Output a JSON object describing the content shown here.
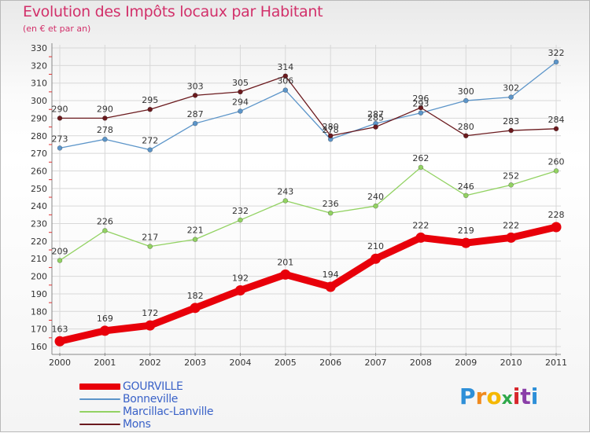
{
  "title": "Evolution des Impôts locaux par Habitant",
  "subtitle": "(en € et par an)",
  "brand": {
    "letters": [
      "P",
      "r",
      "o",
      "x",
      "i",
      "t",
      "i"
    ],
    "colors": [
      "#2e8fd8",
      "#f08a1e",
      "#f5b800",
      "#2ea84a",
      "#d8262c",
      "#8a3ea8",
      "#2e8fd8"
    ]
  },
  "chart_data": {
    "type": "line",
    "title": "Evolution des Impôts locaux par Habitant",
    "subtitle": "(en € et par an)",
    "xlabel": "",
    "ylabel": "",
    "x": [
      "2000",
      "2001",
      "2002",
      "2003",
      "2004",
      "2005",
      "2006",
      "2007",
      "2008",
      "2009",
      "2010",
      "2011"
    ],
    "ylim": [
      160,
      330
    ],
    "yticks": [
      160,
      170,
      180,
      190,
      200,
      210,
      220,
      230,
      240,
      250,
      260,
      270,
      280,
      290,
      300,
      310,
      320,
      330
    ],
    "grid": true,
    "legend_position": "bottom-left",
    "series": [
      {
        "name": "GOURVILLE",
        "color": "#e8000a",
        "values": [
          163,
          169,
          172,
          182,
          192,
          201,
          194,
          210,
          222,
          219,
          222,
          228
        ],
        "bold": true
      },
      {
        "name": "Bonneville",
        "color": "#5c95c9",
        "values": [
          273,
          278,
          272,
          287,
          294,
          306,
          278,
          287,
          293,
          300,
          302,
          322
        ]
      },
      {
        "name": "Marcillac-Lanville",
        "color": "#92d262",
        "values": [
          209,
          226,
          217,
          221,
          232,
          243,
          236,
          240,
          262,
          246,
          252,
          260
        ]
      },
      {
        "name": "Mons",
        "color": "#6b1a1e",
        "values": [
          290,
          290,
          295,
          303,
          305,
          314,
          280,
          285,
          296,
          280,
          283,
          284
        ]
      }
    ],
    "data_labels": [
      {
        "series": "GOURVILLE",
        "labels": [
          "163",
          "169",
          "172",
          "182",
          "192",
          "201",
          "194",
          "210",
          "222",
          "219",
          "222",
          "228"
        ]
      },
      {
        "series": "Bonneville",
        "labels": [
          "273",
          "278",
          "272",
          "287",
          "294",
          "306",
          "278",
          "287",
          "293",
          "300",
          "302",
          "322"
        ]
      },
      {
        "series": "Marcillac-Lanville",
        "labels": [
          "209",
          "226",
          "217",
          "221",
          "232",
          "243",
          "236",
          "240",
          "262",
          "246",
          "252",
          "260"
        ]
      },
      {
        "series": "Mons",
        "labels": [
          "290",
          "290",
          "295",
          "303",
          "305",
          "314",
          "280",
          "285",
          "296",
          "280",
          "283",
          "284"
        ]
      }
    ]
  }
}
